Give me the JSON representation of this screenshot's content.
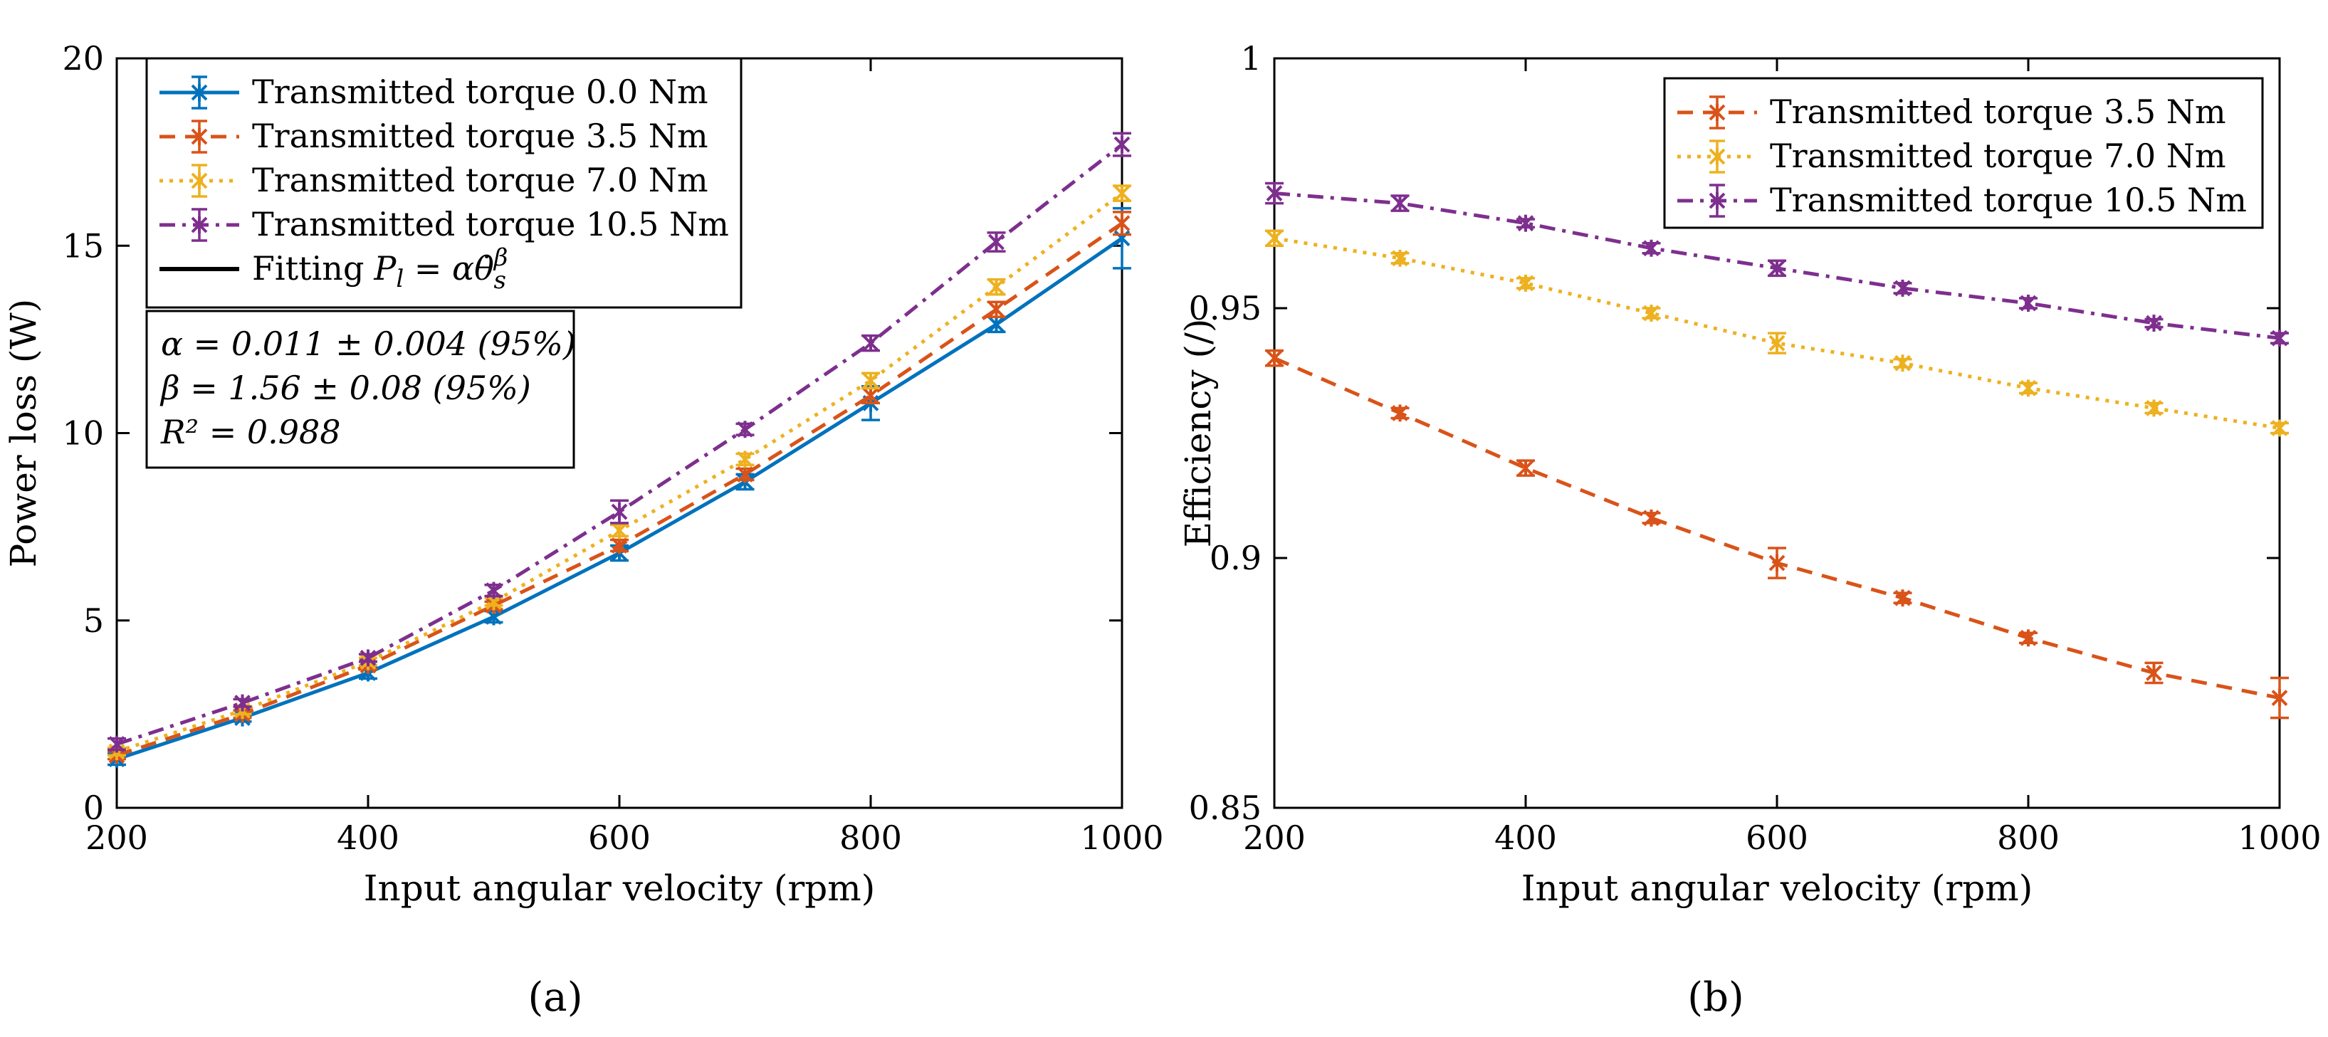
{
  "chart_data": [
    {
      "id": "a",
      "type": "line",
      "xlabel": "Input angular velocity (rpm)",
      "ylabel": "Power loss (W)",
      "xlim": [
        200,
        1000
      ],
      "ylim": [
        0,
        20
      ],
      "xticks": [
        200,
        400,
        600,
        800,
        1000
      ],
      "yticks": [
        0,
        5,
        10,
        15,
        20
      ],
      "legend_position": "top-left",
      "x": [
        200,
        300,
        400,
        500,
        600,
        700,
        800,
        900,
        1000
      ],
      "series": [
        {
          "name": "Transmitted torque 0.0 Nm",
          "color": "#0072BD",
          "dash": "solid",
          "values": [
            1.3,
            2.4,
            3.6,
            5.1,
            6.8,
            8.7,
            10.8,
            12.9,
            15.2
          ],
          "errors": [
            0.15,
            0.1,
            0.15,
            0.15,
            0.2,
            0.2,
            0.45,
            0.2,
            0.8
          ]
        },
        {
          "name": "Transmitted torque 3.5 Nm",
          "color": "#D95319",
          "dash": "dashed",
          "values": [
            1.4,
            2.5,
            3.8,
            5.4,
            7.0,
            8.9,
            11.0,
            13.3,
            15.6
          ],
          "errors": [
            0.1,
            0.1,
            0.1,
            0.1,
            0.15,
            0.15,
            0.2,
            0.2,
            0.3
          ]
        },
        {
          "name": "Transmitted torque 7.0 Nm",
          "color": "#EDB120",
          "dash": "dotted",
          "values": [
            1.5,
            2.6,
            3.9,
            5.5,
            7.4,
            9.3,
            11.4,
            13.9,
            16.4
          ],
          "errors": [
            0.1,
            0.1,
            0.1,
            0.1,
            0.15,
            0.15,
            0.2,
            0.2,
            0.2
          ]
        },
        {
          "name": "Transmitted torque 10.5 Nm",
          "color": "#7E2F8E",
          "dash": "dashdot",
          "values": [
            1.7,
            2.8,
            4.0,
            5.8,
            7.9,
            10.1,
            12.4,
            15.1,
            17.7
          ],
          "errors": [
            0.15,
            0.1,
            0.1,
            0.15,
            0.3,
            0.15,
            0.2,
            0.25,
            0.3
          ]
        }
      ],
      "fit": {
        "name": "Fitting",
        "formula_lhs": "P",
        "formula_lhs_sub": "l",
        "formula_eq": " = ",
        "formula_alpha": "α",
        "formula_theta": "θ̇",
        "formula_theta_sub": "s",
        "formula_exp": "β",
        "color": "#000000",
        "alpha": 0.011,
        "beta": 1.56,
        "x_start": 200,
        "x_end": 1000
      },
      "annotation": [
        "α = 0.011 ± 0.004 (95%)",
        "β = 1.56 ± 0.08 (95%)",
        "R² = 0.988"
      ],
      "panel_label": "(a)"
    },
    {
      "id": "b",
      "type": "line",
      "xlabel": "Input angular velocity (rpm)",
      "ylabel": "Efficiency (/)",
      "xlim": [
        200,
        1000
      ],
      "ylim": [
        0.85,
        1
      ],
      "xticks": [
        200,
        400,
        600,
        800,
        1000
      ],
      "yticks": [
        0.85,
        0.9,
        0.95,
        1
      ],
      "ytick_labels": [
        "0.85",
        "0.9",
        "0.95",
        "1"
      ],
      "legend_position": "top-right",
      "x": [
        200,
        300,
        400,
        500,
        600,
        700,
        800,
        900,
        1000
      ],
      "series": [
        {
          "name": "Transmitted torque 3.5 Nm",
          "color": "#D95319",
          "dash": "dashed",
          "values": [
            0.94,
            0.929,
            0.918,
            0.908,
            0.899,
            0.892,
            0.884,
            0.877,
            0.872
          ],
          "errors": [
            0.0015,
            0.001,
            0.0015,
            0.001,
            0.003,
            0.001,
            0.001,
            0.002,
            0.004
          ]
        },
        {
          "name": "Transmitted torque 7.0 Nm",
          "color": "#EDB120",
          "dash": "dotted",
          "values": [
            0.964,
            0.96,
            0.955,
            0.949,
            0.943,
            0.939,
            0.934,
            0.93,
            0.926
          ],
          "errors": [
            0.0015,
            0.001,
            0.001,
            0.001,
            0.002,
            0.0008,
            0.001,
            0.001,
            0.001
          ]
        },
        {
          "name": "Transmitted torque 10.5 Nm",
          "color": "#7E2F8E",
          "dash": "dashdot",
          "values": [
            0.973,
            0.971,
            0.967,
            0.962,
            0.958,
            0.954,
            0.951,
            0.947,
            0.944
          ],
          "errors": [
            0.002,
            0.0015,
            0.0008,
            0.001,
            0.0015,
            0.001,
            0.001,
            0.0008,
            0.001
          ]
        }
      ],
      "panel_label": "(b)"
    }
  ]
}
